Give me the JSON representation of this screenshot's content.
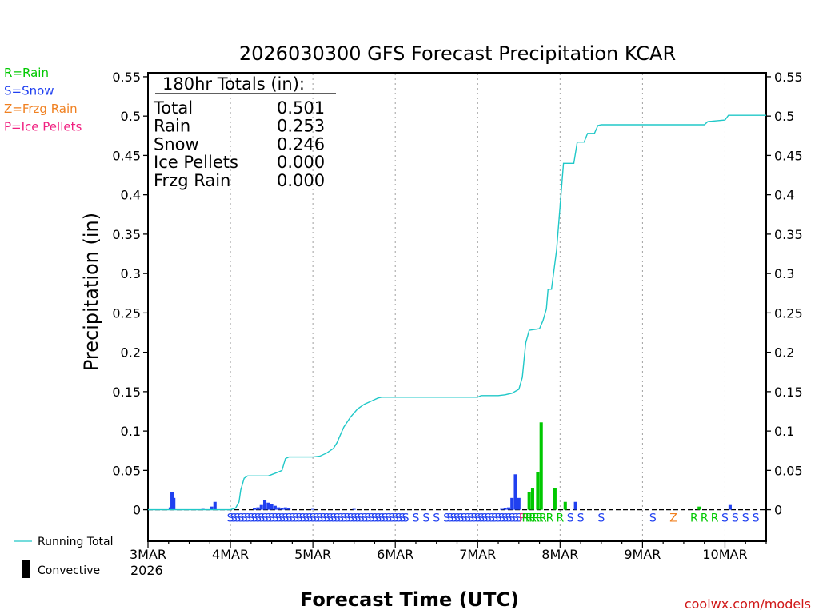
{
  "chart_data": {
    "type": "bar",
    "title": "2026030300 GFS Forecast Precipitation KCAR",
    "ylabel": "Precipitation (in)",
    "xlabel": "Forecast Time (UTC)",
    "ylim": [
      -0.04,
      0.555
    ],
    "xlim_hours": [
      0,
      180
    ],
    "yticks": [
      0,
      0.05,
      0.1,
      0.15,
      0.2,
      0.25,
      0.3,
      0.35,
      0.4,
      0.45,
      0.5,
      0.55
    ],
    "ytick_labels": [
      "0",
      "0.05",
      "0.1",
      "0.15",
      "0.2",
      "0.25",
      "0.3",
      "0.35",
      "0.4",
      "0.45",
      "0.5",
      "0.55"
    ],
    "xticks": [
      {
        "hour": 0,
        "label": "3MAR"
      },
      {
        "hour": 24,
        "label": "4MAR"
      },
      {
        "hour": 48,
        "label": "5MAR"
      },
      {
        "hour": 72,
        "label": "6MAR"
      },
      {
        "hour": 96,
        "label": "7MAR"
      },
      {
        "hour": 120,
        "label": "8MAR"
      },
      {
        "hour": 144,
        "label": "9MAR"
      },
      {
        "hour": 168,
        "label": "10MAR"
      }
    ],
    "year_label": "2026",
    "precip_legend": [
      {
        "text": "R=Rain",
        "color": "#00c800"
      },
      {
        "text": "S=Snow",
        "color": "#2040f0"
      },
      {
        "text": "Z=Frzg Rain",
        "color": "#f08020"
      },
      {
        "text": "P=Ice Pellets",
        "color": "#f02080"
      }
    ],
    "totals_header": "180hr Totals (in):",
    "totals": [
      {
        "label": "Total",
        "value": "0.501"
      },
      {
        "label": "Rain",
        "value": "0.253"
      },
      {
        "label": "Snow",
        "value": "0.246"
      },
      {
        "label": "Ice Pellets",
        "value": "0.000"
      },
      {
        "label": "Frzg Rain",
        "value": "0.000"
      }
    ],
    "series_legend": {
      "running_total": "Running Total",
      "convective": "Convective"
    },
    "colors": {
      "rain": "#00c800",
      "snow": "#2040f0",
      "frzg": "#f08020",
      "pellets": "#f02080",
      "running": "#20c8c8",
      "convective": "#000000"
    },
    "bars": [
      {
        "hour": 6.5,
        "value": 0.003,
        "type": "snow"
      },
      {
        "hour": 7.0,
        "value": 0.022,
        "type": "snow"
      },
      {
        "hour": 7.5,
        "value": 0.015,
        "type": "snow"
      },
      {
        "hour": 16.0,
        "value": 0.001,
        "type": "snow"
      },
      {
        "hour": 18.5,
        "value": 0.004,
        "type": "snow"
      },
      {
        "hour": 19.5,
        "value": 0.01,
        "type": "snow"
      },
      {
        "hour": 31.0,
        "value": 0.002,
        "type": "snow"
      },
      {
        "hour": 32.0,
        "value": 0.003,
        "type": "snow"
      },
      {
        "hour": 33.0,
        "value": 0.006,
        "type": "snow"
      },
      {
        "hour": 34.0,
        "value": 0.012,
        "type": "snow"
      },
      {
        "hour": 35.0,
        "value": 0.009,
        "type": "snow"
      },
      {
        "hour": 36.0,
        "value": 0.007,
        "type": "snow"
      },
      {
        "hour": 37.0,
        "value": 0.005,
        "type": "snow"
      },
      {
        "hour": 38.0,
        "value": 0.003,
        "type": "snow"
      },
      {
        "hour": 39.0,
        "value": 0.002,
        "type": "snow"
      },
      {
        "hour": 40.0,
        "value": 0.003,
        "type": "snow"
      },
      {
        "hour": 41.0,
        "value": 0.002,
        "type": "snow"
      },
      {
        "hour": 48.0,
        "value": 0.001,
        "type": "snow"
      },
      {
        "hour": 60.0,
        "value": 0.001,
        "type": "snow"
      },
      {
        "hour": 103.0,
        "value": 0.001,
        "type": "snow"
      },
      {
        "hour": 104.0,
        "value": 0.002,
        "type": "snow"
      },
      {
        "hour": 105.0,
        "value": 0.003,
        "type": "snow"
      },
      {
        "hour": 106.0,
        "value": 0.015,
        "type": "snow"
      },
      {
        "hour": 107.0,
        "value": 0.045,
        "type": "snow"
      },
      {
        "hour": 108.0,
        "value": 0.015,
        "type": "snow"
      },
      {
        "hour": 111.0,
        "value": 0.022,
        "type": "rain"
      },
      {
        "hour": 112.0,
        "value": 0.027,
        "type": "rain"
      },
      {
        "hour": 113.5,
        "value": 0.048,
        "type": "rain"
      },
      {
        "hour": 114.5,
        "value": 0.111,
        "type": "rain"
      },
      {
        "hour": 118.5,
        "value": 0.027,
        "type": "rain"
      },
      {
        "hour": 121.5,
        "value": 0.01,
        "type": "rain"
      },
      {
        "hour": 124.5,
        "value": 0.01,
        "type": "snow"
      },
      {
        "hour": 160.5,
        "value": 0.004,
        "type": "rain"
      },
      {
        "hour": 169.5,
        "value": 0.006,
        "type": "snow"
      }
    ],
    "running_total": [
      [
        0,
        0
      ],
      [
        24,
        0
      ],
      [
        25.5,
        0.002
      ],
      [
        26.5,
        0.01
      ],
      [
        27,
        0.025
      ],
      [
        28,
        0.04
      ],
      [
        29,
        0.043
      ],
      [
        35,
        0.043
      ],
      [
        38,
        0.048
      ],
      [
        39,
        0.05
      ],
      [
        40,
        0.065
      ],
      [
        41,
        0.067
      ],
      [
        48,
        0.067
      ],
      [
        50,
        0.068
      ],
      [
        52,
        0.072
      ],
      [
        54,
        0.078
      ],
      [
        55,
        0.085
      ],
      [
        56,
        0.095
      ],
      [
        57,
        0.105
      ],
      [
        59,
        0.118
      ],
      [
        61,
        0.128
      ],
      [
        63,
        0.134
      ],
      [
        65,
        0.138
      ],
      [
        66,
        0.14
      ],
      [
        67,
        0.142
      ],
      [
        68,
        0.143
      ],
      [
        72,
        0.143
      ],
      [
        94,
        0.143
      ],
      [
        96,
        0.143
      ],
      [
        97,
        0.145
      ],
      [
        102,
        0.145
      ],
      [
        104,
        0.146
      ],
      [
        106,
        0.148
      ],
      [
        108,
        0.153
      ],
      [
        109,
        0.168
      ],
      [
        110,
        0.212
      ],
      [
        111,
        0.228
      ],
      [
        114,
        0.23
      ],
      [
        115,
        0.24
      ],
      [
        116,
        0.255
      ],
      [
        116.5,
        0.28
      ],
      [
        117.5,
        0.28
      ],
      [
        119,
        0.33
      ],
      [
        120,
        0.385
      ],
      [
        121,
        0.44
      ],
      [
        124,
        0.44
      ],
      [
        125,
        0.467
      ],
      [
        127,
        0.467
      ],
      [
        128,
        0.478
      ],
      [
        130,
        0.478
      ],
      [
        131,
        0.488
      ],
      [
        132,
        0.489
      ],
      [
        156,
        0.489
      ],
      [
        162,
        0.489
      ],
      [
        163,
        0.493
      ],
      [
        168,
        0.495
      ],
      [
        169,
        0.501
      ],
      [
        180,
        0.501
      ]
    ],
    "type_markers": [
      {
        "hour": 24,
        "type": "snow",
        "char": "S"
      },
      {
        "hour": 25,
        "type": "snow",
        "char": "S"
      },
      {
        "hour": 26,
        "type": "snow",
        "char": "S"
      },
      {
        "hour": 27,
        "type": "snow",
        "char": "S"
      },
      {
        "hour": 28,
        "type": "snow",
        "char": "S"
      },
      {
        "hour": 29,
        "type": "snow",
        "char": "S"
      },
      {
        "hour": 30,
        "type": "snow",
        "char": "S"
      },
      {
        "hour": 31,
        "type": "snow",
        "char": "S"
      },
      {
        "hour": 32,
        "type": "snow",
        "char": "S"
      },
      {
        "hour": 33,
        "type": "snow",
        "char": "S"
      },
      {
        "hour": 34,
        "type": "snow",
        "char": "S"
      },
      {
        "hour": 35,
        "type": "snow",
        "char": "S"
      },
      {
        "hour": 36,
        "type": "snow",
        "char": "S"
      },
      {
        "hour": 37,
        "type": "snow",
        "char": "S"
      },
      {
        "hour": 38,
        "type": "snow",
        "char": "S"
      },
      {
        "hour": 39,
        "type": "snow",
        "char": "S"
      },
      {
        "hour": 40,
        "type": "snow",
        "char": "S"
      },
      {
        "hour": 41,
        "type": "snow",
        "char": "S"
      },
      {
        "hour": 42,
        "type": "snow",
        "char": "S"
      },
      {
        "hour": 43,
        "type": "snow",
        "char": "S"
      },
      {
        "hour": 44,
        "type": "snow",
        "char": "S"
      },
      {
        "hour": 45,
        "type": "snow",
        "char": "S"
      },
      {
        "hour": 46,
        "type": "snow",
        "char": "S"
      },
      {
        "hour": 47,
        "type": "snow",
        "char": "S"
      },
      {
        "hour": 48,
        "type": "snow",
        "char": "S"
      },
      {
        "hour": 49,
        "type": "snow",
        "char": "S"
      },
      {
        "hour": 50,
        "type": "snow",
        "char": "S"
      },
      {
        "hour": 51,
        "type": "snow",
        "char": "S"
      },
      {
        "hour": 52,
        "type": "snow",
        "char": "S"
      },
      {
        "hour": 53,
        "type": "snow",
        "char": "S"
      },
      {
        "hour": 54,
        "type": "snow",
        "char": "S"
      },
      {
        "hour": 55,
        "type": "snow",
        "char": "S"
      },
      {
        "hour": 56,
        "type": "snow",
        "char": "S"
      },
      {
        "hour": 57,
        "type": "snow",
        "char": "S"
      },
      {
        "hour": 58,
        "type": "snow",
        "char": "S"
      },
      {
        "hour": 59,
        "type": "snow",
        "char": "S"
      },
      {
        "hour": 60,
        "type": "snow",
        "char": "S"
      },
      {
        "hour": 61,
        "type": "snow",
        "char": "S"
      },
      {
        "hour": 62,
        "type": "snow",
        "char": "S"
      },
      {
        "hour": 63,
        "type": "snow",
        "char": "S"
      },
      {
        "hour": 64,
        "type": "snow",
        "char": "S"
      },
      {
        "hour": 65,
        "type": "snow",
        "char": "S"
      },
      {
        "hour": 66,
        "type": "snow",
        "char": "S"
      },
      {
        "hour": 67,
        "type": "snow",
        "char": "S"
      },
      {
        "hour": 68,
        "type": "snow",
        "char": "S"
      },
      {
        "hour": 69,
        "type": "snow",
        "char": "S"
      },
      {
        "hour": 70,
        "type": "snow",
        "char": "S"
      },
      {
        "hour": 71,
        "type": "snow",
        "char": "S"
      },
      {
        "hour": 72,
        "type": "snow",
        "char": "S"
      },
      {
        "hour": 73,
        "type": "snow",
        "char": "S"
      },
      {
        "hour": 74,
        "type": "snow",
        "char": "S"
      },
      {
        "hour": 75,
        "type": "snow",
        "char": "S"
      },
      {
        "hour": 78,
        "type": "snow",
        "char": "S"
      },
      {
        "hour": 81,
        "type": "snow",
        "char": "S"
      },
      {
        "hour": 84,
        "type": "snow",
        "char": "S"
      },
      {
        "hour": 87,
        "type": "snow",
        "char": "S"
      },
      {
        "hour": 88,
        "type": "snow",
        "char": "S"
      },
      {
        "hour": 89,
        "type": "snow",
        "char": "S"
      },
      {
        "hour": 90,
        "type": "snow",
        "char": "S"
      },
      {
        "hour": 91,
        "type": "snow",
        "char": "S"
      },
      {
        "hour": 92,
        "type": "snow",
        "char": "S"
      },
      {
        "hour": 93,
        "type": "snow",
        "char": "S"
      },
      {
        "hour": 94,
        "type": "snow",
        "char": "S"
      },
      {
        "hour": 95,
        "type": "snow",
        "char": "S"
      },
      {
        "hour": 96,
        "type": "snow",
        "char": "S"
      },
      {
        "hour": 97,
        "type": "snow",
        "char": "S"
      },
      {
        "hour": 98,
        "type": "snow",
        "char": "S"
      },
      {
        "hour": 99,
        "type": "snow",
        "char": "S"
      },
      {
        "hour": 100,
        "type": "snow",
        "char": "S"
      },
      {
        "hour": 101,
        "type": "snow",
        "char": "S"
      },
      {
        "hour": 102,
        "type": "snow",
        "char": "S"
      },
      {
        "hour": 103,
        "type": "snow",
        "char": "S"
      },
      {
        "hour": 104,
        "type": "snow",
        "char": "S"
      },
      {
        "hour": 105,
        "type": "snow",
        "char": "S"
      },
      {
        "hour": 106,
        "type": "snow",
        "char": "S"
      },
      {
        "hour": 107,
        "type": "snow",
        "char": "S"
      },
      {
        "hour": 108,
        "type": "snow",
        "char": "S"
      },
      {
        "hour": 109,
        "type": "pellets",
        "char": "P"
      },
      {
        "hour": 110,
        "type": "rain",
        "char": "R"
      },
      {
        "hour": 111,
        "type": "rain",
        "char": "R"
      },
      {
        "hour": 112,
        "type": "rain",
        "char": "R"
      },
      {
        "hour": 113,
        "type": "rain",
        "char": "R"
      },
      {
        "hour": 114,
        "type": "rain",
        "char": "R"
      },
      {
        "hour": 115,
        "type": "rain",
        "char": "R"
      },
      {
        "hour": 117,
        "type": "rain",
        "char": "R"
      },
      {
        "hour": 120,
        "type": "rain",
        "char": "R"
      },
      {
        "hour": 123,
        "type": "snow",
        "char": "S"
      },
      {
        "hour": 126,
        "type": "snow",
        "char": "S"
      },
      {
        "hour": 132,
        "type": "snow",
        "char": "S"
      },
      {
        "hour": 147,
        "type": "snow",
        "char": "S"
      },
      {
        "hour": 153,
        "type": "frzg",
        "char": "Z"
      },
      {
        "hour": 159,
        "type": "rain",
        "char": "R"
      },
      {
        "hour": 162,
        "type": "rain",
        "char": "R"
      },
      {
        "hour": 165,
        "type": "rain",
        "char": "R"
      },
      {
        "hour": 168,
        "type": "snow",
        "char": "S"
      },
      {
        "hour": 171,
        "type": "snow",
        "char": "S"
      },
      {
        "hour": 174,
        "type": "snow",
        "char": "S"
      },
      {
        "hour": 177,
        "type": "snow",
        "char": "S"
      }
    ]
  },
  "footer": {
    "credit": "coolwx.com/models"
  }
}
